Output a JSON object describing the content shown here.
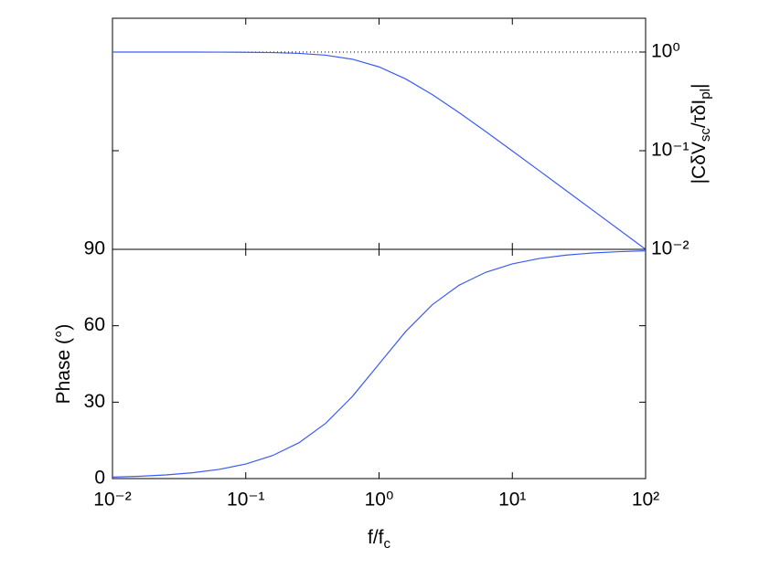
{
  "chart_data": [
    {
      "type": "line",
      "xscale": "log",
      "yscale": "log",
      "xlim": [
        0.01,
        100
      ],
      "ylim": [
        0.01,
        2.2
      ],
      "xticks": [
        0.01,
        0.1,
        1,
        10,
        100
      ],
      "yticks": [
        {
          "value": 0.01,
          "label": "10⁻²"
        },
        {
          "value": 0.1,
          "label": "10⁻¹"
        },
        {
          "value": 1,
          "label": "10⁰"
        }
      ],
      "yaxis_side": "right",
      "ylabel": [
        "|CδV",
        "sc",
        "/τδI",
        "pl",
        "|"
      ],
      "reference_line": 1,
      "x": [
        0.01,
        0.01585,
        0.02512,
        0.03981,
        0.0631,
        0.1,
        0.1585,
        0.2512,
        0.3981,
        0.631,
        1,
        1.585,
        2.512,
        3.981,
        6.31,
        10,
        15.85,
        25.12,
        39.81,
        63.1,
        100
      ],
      "series": [
        {
          "color": "#3a5cf5",
          "values": [
            1.0,
            0.9999,
            0.9997,
            0.9992,
            0.998,
            0.995,
            0.9877,
            0.9699,
            0.9291,
            0.8457,
            0.7071,
            0.5336,
            0.3699,
            0.2436,
            0.1565,
            0.0995,
            0.06297,
            0.03978,
            0.02511,
            0.01585,
            0.01
          ]
        }
      ]
    },
    {
      "type": "line",
      "xscale": "log",
      "xlim": [
        0.01,
        100
      ],
      "ylim": [
        0,
        90
      ],
      "xticks": [
        {
          "value": 0.01,
          "label": "10⁻²"
        },
        {
          "value": 0.1,
          "label": "10⁻¹"
        },
        {
          "value": 1,
          "label": "10⁰"
        },
        {
          "value": 10,
          "label": "10¹"
        },
        {
          "value": 100,
          "label": "10²"
        }
      ],
      "yticks": [
        0,
        30,
        60,
        90
      ],
      "yaxis_side": "left",
      "ylabel": [
        "Phase (°)"
      ],
      "xlabel": [
        "f/f",
        "c"
      ],
      "x": [
        0.01,
        0.01585,
        0.02512,
        0.03981,
        0.0631,
        0.1,
        0.1585,
        0.2512,
        0.3981,
        0.631,
        1,
        1.585,
        2.512,
        3.981,
        6.31,
        10,
        15.85,
        25.12,
        39.81,
        63.1,
        100
      ],
      "series": [
        {
          "color": "#3a5cf5",
          "values": [
            0.573,
            0.908,
            1.439,
            2.28,
            3.61,
            5.71,
            9.01,
            14.1,
            21.7,
            32.25,
            45,
            57.75,
            68.3,
            75.9,
            80.99,
            84.29,
            86.39,
            87.72,
            88.56,
            89.09,
            89.43
          ]
        }
      ]
    }
  ]
}
